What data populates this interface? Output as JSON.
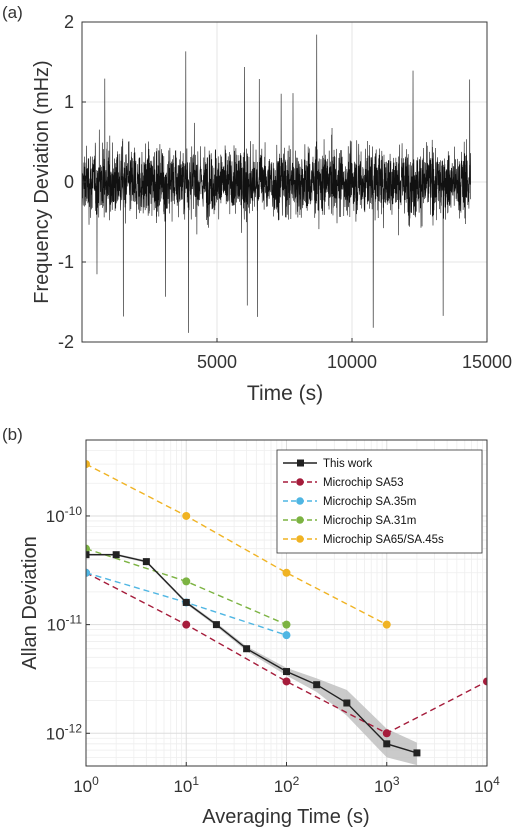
{
  "chart_data": [
    {
      "panel_label": "(a)",
      "type": "line",
      "xlabel": "Time (s)",
      "ylabel": "Frequency Deviation (mHz)",
      "xlim": [
        0,
        15000
      ],
      "ylim": [
        -2,
        2
      ],
      "x_ticks": [
        5000,
        10000,
        15000
      ],
      "y_ticks": [
        -2,
        -1,
        0,
        1,
        2
      ],
      "grid": true,
      "series": [
        {
          "color": "#111111",
          "x_range": [
            0,
            14400
          ],
          "sample_interval": 5,
          "rms": 0.42,
          "typical_envelope": [
            -1.1,
            1.1
          ],
          "peak_range": [
            -1.9,
            1.9
          ]
        }
      ]
    },
    {
      "panel_label": "(b)",
      "type": "line",
      "xlabel": "Averaging Time (s)",
      "ylabel": "Allan Deviation",
      "xscale": "log",
      "yscale": "log",
      "xlim": [
        1,
        10000
      ],
      "ylim": [
        5e-13,
        5e-10
      ],
      "x_ticks": [
        1,
        10,
        100,
        1000,
        10000
      ],
      "x_tick_labels": [
        [
          "10",
          "0"
        ],
        [
          "10",
          "1"
        ],
        [
          "10",
          "2"
        ],
        [
          "10",
          "3"
        ],
        [
          "10",
          "4"
        ]
      ],
      "y_ticks": [
        1e-12,
        1e-11,
        1e-10
      ],
      "y_tick_labels": [
        [
          "10",
          "-12"
        ],
        [
          "10",
          "-11"
        ],
        [
          "10",
          "-10"
        ]
      ],
      "grid": true,
      "legend_position": "top-right",
      "series": [
        {
          "name": "This work",
          "color": "#222222",
          "style": "solid",
          "marker": "square",
          "x": [
            1,
            2,
            4,
            10,
            20,
            40,
            100,
            200,
            400,
            1000,
            2000
          ],
          "y": [
            4.4e-11,
            4.4e-11,
            3.8e-11,
            1.6e-11,
            1e-11,
            6e-12,
            3.7e-12,
            2.8e-12,
            1.9e-12,
            8e-13,
            6.6e-13
          ],
          "band_lower": [
            4.3e-11,
            4.3e-11,
            3.7e-11,
            1.55e-11,
            9.6e-12,
            5.7e-12,
            3.4e-12,
            2.4e-12,
            1.45e-12,
            6e-13,
            5.1e-13
          ],
          "band_upper": [
            4.5e-11,
            4.5e-11,
            3.9e-11,
            1.65e-11,
            1.04e-11,
            6.3e-12,
            4e-12,
            3.2e-12,
            2.5e-12,
            1.1e-12,
            8.2e-13
          ]
        },
        {
          "name": "Microchip SA53",
          "color": "#a51c3b",
          "style": "dashed",
          "marker": "circle",
          "x": [
            1,
            10,
            100,
            1000,
            10000
          ],
          "y": [
            3e-11,
            1e-11,
            3e-12,
            1e-12,
            3e-12
          ]
        },
        {
          "name": "Microchip SA.35m",
          "color": "#4fb6e3",
          "style": "dashed",
          "marker": "circle",
          "x": [
            1,
            10,
            100
          ],
          "y": [
            3e-11,
            1.6e-11,
            8e-12
          ]
        },
        {
          "name": "Microchip SA.31m",
          "color": "#7cb342",
          "style": "dashed",
          "marker": "circle",
          "x": [
            1,
            10,
            100
          ],
          "y": [
            5e-11,
            2.5e-11,
            1e-11
          ]
        },
        {
          "name": "Microchip SA65/SA.45s",
          "color": "#f0b323",
          "style": "dashed",
          "marker": "circle",
          "x": [
            1,
            10,
            100,
            1000
          ],
          "y": [
            3e-10,
            1e-10,
            3e-11,
            1e-11
          ]
        }
      ]
    }
  ]
}
